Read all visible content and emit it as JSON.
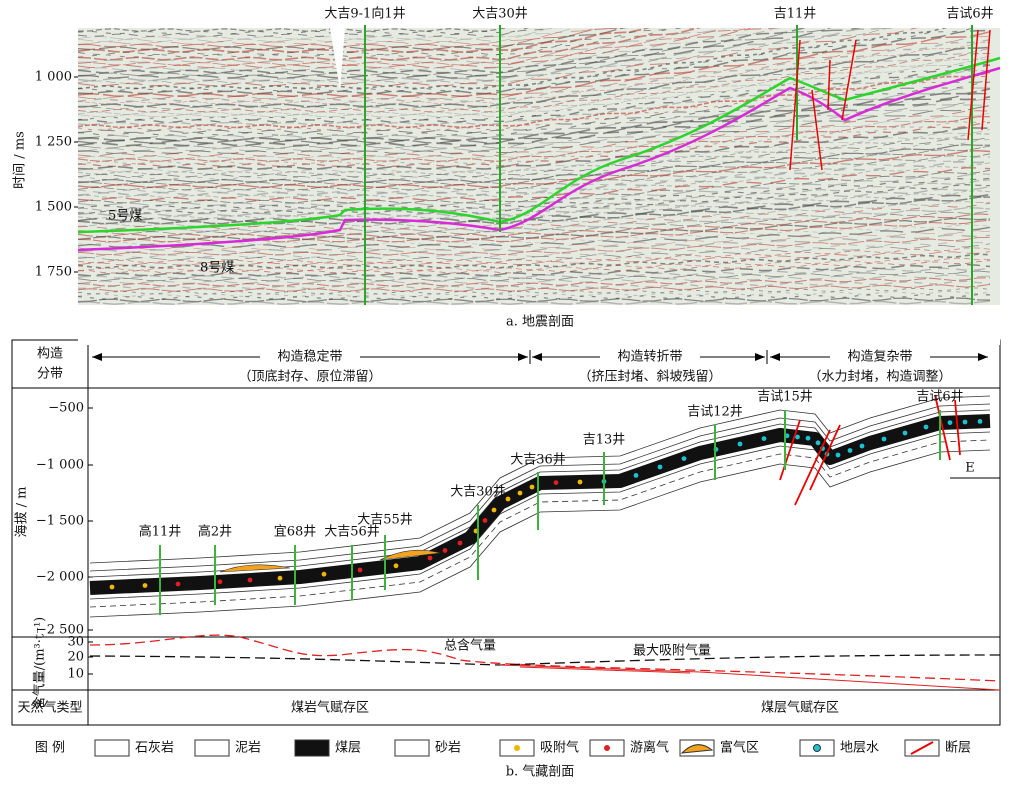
{
  "seismic": {
    "wells": [
      "大吉9-1向1井",
      "大吉30井",
      "吉11井",
      "吉试6井"
    ],
    "y_axis_label": "时间 / ms",
    "y_ticks": [
      "1 000",
      "1 250",
      "1 500",
      "1 750"
    ],
    "horizons": [
      "5号煤",
      "8号煤"
    ],
    "caption": "a. 地震剖面"
  },
  "section": {
    "row_label": [
      "构造",
      "分带"
    ],
    "zones": [
      {
        "name": "构造稳定带",
        "note": "（顶底封存、原位滞留）"
      },
      {
        "name": "构造转折带",
        "note": "（挤压封堵、斜坡残留）"
      },
      {
        "name": "构造复杂带",
        "note": "（水力封堵，构造调整）"
      }
    ],
    "y_axis_label": "海拔 / m",
    "y_ticks": [
      "−500",
      "−1 000",
      "−1 500",
      "−2 000",
      "−2 500"
    ],
    "wells": [
      "高11井",
      "高2井",
      "宜68井",
      "大吉56井",
      "大吉55井",
      "大吉30井",
      "大吉36井",
      "吉13井",
      "吉试12井",
      "吉试15井",
      "吉试6井"
    ],
    "fault_label": "E"
  },
  "gas_content": {
    "axis_label": "含气量/(m³·t⁻¹)",
    "y_ticks": [
      "30",
      "20",
      "10"
    ],
    "curves": [
      "总含气量",
      "最大吸附气量"
    ]
  },
  "gas_type": {
    "label": "天然气类型",
    "zones": [
      "煤岩气赋存区",
      "煤层气赋存区"
    ]
  },
  "legend": {
    "title": "图 例",
    "items": [
      "石灰岩",
      "泥岩",
      "煤层",
      "砂岩",
      "吸附气",
      "游离气",
      "富气区",
      "地层水",
      "断层"
    ]
  },
  "caption": "b. 气藏剖面"
}
